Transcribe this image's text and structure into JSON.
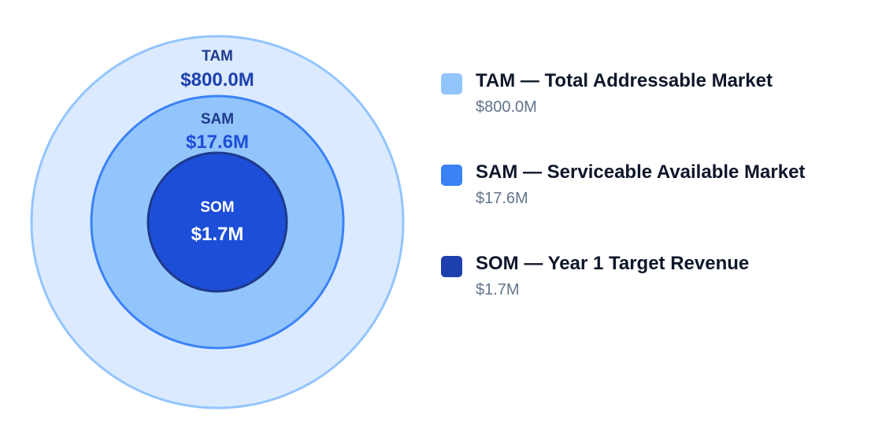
{
  "diagram": {
    "rings": [
      {
        "key": "tam",
        "label": "TAM",
        "value": "$800.0M",
        "fill": "#dbeafe",
        "stroke": "#93c5fd",
        "label_color": "#1e3a8a",
        "value_color": "#1e40af"
      },
      {
        "key": "sam",
        "label": "SAM",
        "value": "$17.6M",
        "fill": "#93c5fd",
        "stroke": "#3b82f6",
        "label_color": "#1e3a8a",
        "value_color": "#1d4ed8"
      },
      {
        "key": "som",
        "label": "SOM",
        "value": "$1.7M",
        "fill": "#1d4ed8",
        "stroke": "#1e3a8a",
        "label_color": "#ffffff",
        "value_color": "#ffffff"
      }
    ]
  },
  "legend": {
    "items": [
      {
        "title": "TAM — Total Addressable Market",
        "value": "$800.0M",
        "color": "#93c5fd"
      },
      {
        "title": "SAM — Serviceable Available Market",
        "value": "$17.6M",
        "color": "#3b82f6"
      },
      {
        "title": "SOM — Year 1 Target Revenue",
        "value": "$1.7M",
        "color": "#1e40af"
      }
    ]
  }
}
